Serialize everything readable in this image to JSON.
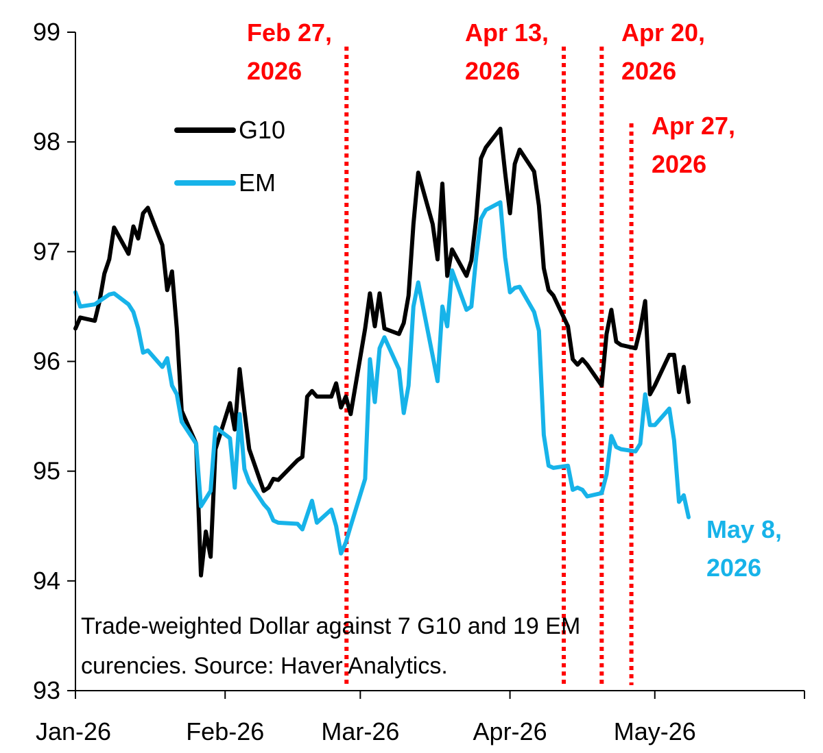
{
  "chart_data": {
    "type": "line",
    "title": "",
    "xlabel": "",
    "ylabel": "",
    "ylim": [
      93,
      99
    ],
    "yticks": [
      "93",
      "94",
      "95",
      "96",
      "97",
      "98",
      "99"
    ],
    "xticks": [
      {
        "date": "2026-01-01",
        "label": "Jan-26"
      },
      {
        "date": "2026-02-01",
        "label": "Feb-26"
      },
      {
        "date": "2026-03-01",
        "label": "Mar-26"
      },
      {
        "date": "2026-04-01",
        "label": "Apr-26"
      },
      {
        "date": "2026-05-01",
        "label": "May-26"
      }
    ],
    "xlim": [
      "2026-01-01",
      "2026-05-31"
    ],
    "grid": false,
    "legend_position": "top-left",
    "note": [
      "Trade-weighted Dollar against 7 G10 and 19 EM",
      "curencies. Source: Haver Analytics."
    ],
    "end_label": {
      "series": "EM",
      "lines": [
        "May 8,",
        "2026"
      ],
      "color": "#17b3e9"
    },
    "event_lines": [
      {
        "date": "2026-02-27",
        "lines": [
          "Feb 27,",
          "2026"
        ]
      },
      {
        "date": "2026-04-13",
        "lines": [
          "Apr 13,",
          "2026"
        ]
      },
      {
        "date": "2026-04-20",
        "lines": [
          "Apr 20,",
          "2026"
        ]
      },
      {
        "date": "2026-04-27",
        "lines": [
          "Apr 27,",
          "2026"
        ]
      }
    ],
    "event_color": "#ff0000",
    "series": [
      {
        "name": "G10",
        "color": "#000000",
        "points": [
          [
            "2026-01-01",
            96.3
          ],
          [
            "2026-01-02",
            96.4
          ],
          [
            "2026-01-05",
            96.37
          ],
          [
            "2026-01-06",
            96.55
          ],
          [
            "2026-01-07",
            96.8
          ],
          [
            "2026-01-08",
            96.93
          ],
          [
            "2026-01-09",
            97.22
          ],
          [
            "2026-01-12",
            96.98
          ],
          [
            "2026-01-13",
            97.23
          ],
          [
            "2026-01-14",
            97.12
          ],
          [
            "2026-01-15",
            97.35
          ],
          [
            "2026-01-16",
            97.4
          ],
          [
            "2026-01-19",
            97.06
          ],
          [
            "2026-01-20",
            96.65
          ],
          [
            "2026-01-21",
            96.82
          ],
          [
            "2026-01-22",
            96.3
          ],
          [
            "2026-01-23",
            95.55
          ],
          [
            "2026-01-26",
            95.25
          ],
          [
            "2026-01-27",
            94.05
          ],
          [
            "2026-01-28",
            94.45
          ],
          [
            "2026-01-29",
            94.22
          ],
          [
            "2026-01-30",
            95.2
          ],
          [
            "2026-02-02",
            95.62
          ],
          [
            "2026-02-03",
            95.38
          ],
          [
            "2026-02-04",
            95.93
          ],
          [
            "2026-02-05",
            95.55
          ],
          [
            "2026-02-06",
            95.2
          ],
          [
            "2026-02-09",
            94.82
          ],
          [
            "2026-02-10",
            94.85
          ],
          [
            "2026-02-11",
            94.93
          ],
          [
            "2026-02-12",
            94.92
          ],
          [
            "2026-02-16",
            95.1
          ],
          [
            "2026-02-17",
            95.13
          ],
          [
            "2026-02-18",
            95.68
          ],
          [
            "2026-02-19",
            95.73
          ],
          [
            "2026-02-20",
            95.68
          ],
          [
            "2026-02-23",
            95.68
          ],
          [
            "2026-02-24",
            95.8
          ],
          [
            "2026-02-25",
            95.58
          ],
          [
            "2026-02-26",
            95.68
          ],
          [
            "2026-02-27",
            95.52
          ],
          [
            "2026-03-02",
            96.3
          ],
          [
            "2026-03-03",
            96.62
          ],
          [
            "2026-03-04",
            96.32
          ],
          [
            "2026-03-05",
            96.62
          ],
          [
            "2026-03-06",
            96.3
          ],
          [
            "2026-03-09",
            96.25
          ],
          [
            "2026-03-10",
            96.35
          ],
          [
            "2026-03-11",
            96.6
          ],
          [
            "2026-03-12",
            97.25
          ],
          [
            "2026-03-13",
            97.72
          ],
          [
            "2026-03-16",
            97.25
          ],
          [
            "2026-03-17",
            96.93
          ],
          [
            "2026-03-18",
            97.62
          ],
          [
            "2026-03-19",
            96.78
          ],
          [
            "2026-03-20",
            97.02
          ],
          [
            "2026-03-23",
            96.78
          ],
          [
            "2026-03-24",
            96.92
          ],
          [
            "2026-03-25",
            97.3
          ],
          [
            "2026-03-26",
            97.85
          ],
          [
            "2026-03-27",
            97.95
          ],
          [
            "2026-03-30",
            98.12
          ],
          [
            "2026-03-31",
            97.72
          ],
          [
            "2026-04-01",
            97.35
          ],
          [
            "2026-04-02",
            97.8
          ],
          [
            "2026-04-03",
            97.93
          ],
          [
            "2026-04-06",
            97.73
          ],
          [
            "2026-04-07",
            97.42
          ],
          [
            "2026-04-08",
            96.85
          ],
          [
            "2026-04-09",
            96.65
          ],
          [
            "2026-04-10",
            96.6
          ],
          [
            "2026-04-13",
            96.32
          ],
          [
            "2026-04-14",
            96.02
          ],
          [
            "2026-04-15",
            95.97
          ],
          [
            "2026-04-16",
            96.02
          ],
          [
            "2026-04-17",
            95.97
          ],
          [
            "2026-04-20",
            95.78
          ],
          [
            "2026-04-21",
            96.25
          ],
          [
            "2026-04-22",
            96.47
          ],
          [
            "2026-04-23",
            96.18
          ],
          [
            "2026-04-24",
            96.15
          ],
          [
            "2026-04-27",
            96.12
          ],
          [
            "2026-04-28",
            96.3
          ],
          [
            "2026-04-29",
            96.55
          ],
          [
            "2026-04-30",
            95.7
          ],
          [
            "2026-05-01",
            95.78
          ],
          [
            "2026-05-04",
            96.06
          ],
          [
            "2026-05-05",
            96.06
          ],
          [
            "2026-05-06",
            95.72
          ],
          [
            "2026-05-07",
            95.95
          ],
          [
            "2026-05-08",
            95.63
          ]
        ]
      },
      {
        "name": "EM",
        "color": "#17b3e9",
        "points": [
          [
            "2026-01-01",
            96.63
          ],
          [
            "2026-01-02",
            96.5
          ],
          [
            "2026-01-05",
            96.52
          ],
          [
            "2026-01-06",
            96.55
          ],
          [
            "2026-01-07",
            96.58
          ],
          [
            "2026-01-08",
            96.61
          ],
          [
            "2026-01-09",
            96.62
          ],
          [
            "2026-01-12",
            96.52
          ],
          [
            "2026-01-13",
            96.45
          ],
          [
            "2026-01-14",
            96.3
          ],
          [
            "2026-01-15",
            96.08
          ],
          [
            "2026-01-16",
            96.1
          ],
          [
            "2026-01-19",
            95.95
          ],
          [
            "2026-01-20",
            96.03
          ],
          [
            "2026-01-21",
            95.78
          ],
          [
            "2026-01-22",
            95.7
          ],
          [
            "2026-01-23",
            95.45
          ],
          [
            "2026-01-26",
            95.25
          ],
          [
            "2026-01-27",
            94.68
          ],
          [
            "2026-01-28",
            94.75
          ],
          [
            "2026-01-29",
            94.82
          ],
          [
            "2026-01-30",
            95.4
          ],
          [
            "2026-02-02",
            95.3
          ],
          [
            "2026-02-03",
            94.85
          ],
          [
            "2026-02-04",
            95.52
          ],
          [
            "2026-02-05",
            95.02
          ],
          [
            "2026-02-06",
            94.9
          ],
          [
            "2026-02-09",
            94.7
          ],
          [
            "2026-02-10",
            94.65
          ],
          [
            "2026-02-11",
            94.55
          ],
          [
            "2026-02-12",
            94.53
          ],
          [
            "2026-02-16",
            94.52
          ],
          [
            "2026-02-17",
            94.47
          ],
          [
            "2026-02-18",
            94.6
          ],
          [
            "2026-02-19",
            94.73
          ],
          [
            "2026-02-20",
            94.53
          ],
          [
            "2026-02-23",
            94.65
          ],
          [
            "2026-02-24",
            94.5
          ],
          [
            "2026-02-25",
            94.25
          ],
          [
            "2026-02-26",
            94.35
          ],
          [
            "2026-02-27",
            94.5
          ],
          [
            "2026-03-02",
            94.93
          ],
          [
            "2026-03-03",
            96.02
          ],
          [
            "2026-03-04",
            95.63
          ],
          [
            "2026-03-05",
            96.12
          ],
          [
            "2026-03-06",
            96.22
          ],
          [
            "2026-03-09",
            95.93
          ],
          [
            "2026-03-10",
            95.53
          ],
          [
            "2026-03-11",
            95.78
          ],
          [
            "2026-03-12",
            96.5
          ],
          [
            "2026-03-13",
            96.72
          ],
          [
            "2026-03-16",
            96.05
          ],
          [
            "2026-03-17",
            95.82
          ],
          [
            "2026-03-18",
            96.5
          ],
          [
            "2026-03-19",
            96.32
          ],
          [
            "2026-03-20",
            96.83
          ],
          [
            "2026-03-23",
            96.47
          ],
          [
            "2026-03-24",
            96.5
          ],
          [
            "2026-03-25",
            96.95
          ],
          [
            "2026-03-26",
            97.3
          ],
          [
            "2026-03-27",
            97.38
          ],
          [
            "2026-03-30",
            97.45
          ],
          [
            "2026-03-31",
            96.95
          ],
          [
            "2026-04-01",
            96.63
          ],
          [
            "2026-04-02",
            96.67
          ],
          [
            "2026-04-03",
            96.68
          ],
          [
            "2026-04-06",
            96.45
          ],
          [
            "2026-04-07",
            96.28
          ],
          [
            "2026-04-08",
            95.33
          ],
          [
            "2026-04-09",
            95.05
          ],
          [
            "2026-04-10",
            95.03
          ],
          [
            "2026-04-13",
            95.05
          ],
          [
            "2026-04-14",
            94.83
          ],
          [
            "2026-04-15",
            94.85
          ],
          [
            "2026-04-16",
            94.83
          ],
          [
            "2026-04-17",
            94.77
          ],
          [
            "2026-04-20",
            94.8
          ],
          [
            "2026-04-21",
            94.97
          ],
          [
            "2026-04-22",
            95.32
          ],
          [
            "2026-04-23",
            95.22
          ],
          [
            "2026-04-24",
            95.2
          ],
          [
            "2026-04-27",
            95.18
          ],
          [
            "2026-04-28",
            95.25
          ],
          [
            "2026-04-29",
            95.7
          ],
          [
            "2026-04-30",
            95.42
          ],
          [
            "2026-05-01",
            95.42
          ],
          [
            "2026-05-04",
            95.57
          ],
          [
            "2026-05-05",
            95.28
          ],
          [
            "2026-05-06",
            94.72
          ],
          [
            "2026-05-07",
            94.78
          ],
          [
            "2026-05-08",
            94.58
          ]
        ]
      }
    ]
  }
}
